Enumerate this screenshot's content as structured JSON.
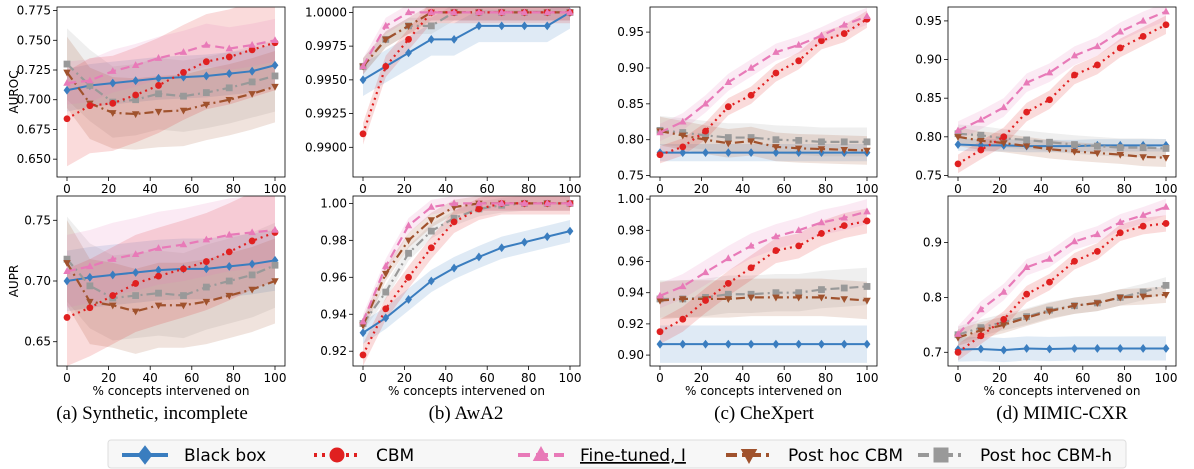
{
  "x_ticks": [
    0,
    20,
    40,
    60,
    80,
    100
  ],
  "xlabel": "% concepts intervened on",
  "legend": {
    "entries": [
      {
        "label": "Black box",
        "color": "#3a7dbf",
        "marker": "diamond",
        "dash": "solid",
        "underline": false
      },
      {
        "label": "CBM",
        "color": "#e02020",
        "marker": "circle",
        "dash": "dotted",
        "underline": false
      },
      {
        "label": "Fine-tuned, I",
        "color": "#e87ab8",
        "marker": "triangle-up",
        "dash": "dashed",
        "underline": true
      },
      {
        "label": "Post hoc CBM",
        "color": "#a0522d",
        "marker": "triangle-down",
        "dash": "dashdot",
        "underline": false
      },
      {
        "label": "Post hoc CBM-h",
        "color": "#999999",
        "marker": "square",
        "dash": "dashdot",
        "underline": false
      }
    ]
  },
  "captions": [
    "(a) Synthetic, incomplete",
    "(b) AwA2",
    "(c) CheXpert",
    "(d) MIMIC-CXR"
  ],
  "chart_data": [
    {
      "type": "line",
      "panel": "a-top",
      "ylabel": "AUROC",
      "ylim": [
        0.635,
        0.778
      ],
      "yticks": [
        0.65,
        0.675,
        0.7,
        0.725,
        0.75,
        0.775
      ],
      "ytick_decimals": 3,
      "x": [
        0,
        11,
        22,
        33,
        44,
        56,
        67,
        78,
        89,
        100
      ],
      "series": [
        {
          "name": "Black box",
          "values": [
            0.708,
            0.712,
            0.714,
            0.716,
            0.718,
            0.719,
            0.72,
            0.722,
            0.724,
            0.729
          ],
          "band": 0.018
        },
        {
          "name": "CBM",
          "values": [
            0.684,
            0.695,
            0.697,
            0.704,
            0.712,
            0.723,
            0.732,
            0.736,
            0.742,
            0.748
          ],
          "band": 0.04
        },
        {
          "name": "Fine-tuned, I",
          "values": [
            0.714,
            0.716,
            0.724,
            0.729,
            0.735,
            0.74,
            0.746,
            0.743,
            0.746,
            0.75
          ],
          "band": 0.018
        },
        {
          "name": "Post hoc CBM",
          "values": [
            0.723,
            0.697,
            0.689,
            0.688,
            0.69,
            0.691,
            0.696,
            0.7,
            0.705,
            0.711
          ],
          "band": 0.03
        },
        {
          "name": "Post hoc CBM-h",
          "values": [
            0.73,
            0.712,
            0.698,
            0.7,
            0.705,
            0.703,
            0.706,
            0.71,
            0.715,
            0.72
          ],
          "band": 0.03
        }
      ]
    },
    {
      "type": "line",
      "panel": "b-top",
      "ylabel": "",
      "ylim": [
        0.9878,
        1.0004
      ],
      "yticks": [
        0.99,
        0.9925,
        0.995,
        0.9975,
        1.0
      ],
      "ytick_decimals": 4,
      "x": [
        0,
        11,
        22,
        33,
        44,
        56,
        67,
        78,
        89,
        100
      ],
      "series": [
        {
          "name": "Black box",
          "values": [
            0.995,
            0.996,
            0.997,
            0.998,
            0.998,
            0.999,
            0.999,
            0.999,
            0.999,
            1.0
          ],
          "band": 0.0012
        },
        {
          "name": "CBM",
          "values": [
            0.991,
            0.996,
            0.998,
            1.0,
            1.0,
            1.0,
            1.0,
            1.0,
            1.0,
            1.0
          ],
          "band": 0.0008
        },
        {
          "name": "Fine-tuned, I",
          "values": [
            0.996,
            0.999,
            1.0,
            1.0,
            1.0,
            1.0,
            1.0,
            1.0,
            1.0,
            1.0
          ],
          "band": 0.0006
        },
        {
          "name": "Post hoc CBM",
          "values": [
            0.996,
            0.998,
            0.999,
            1.0,
            1.0,
            1.0,
            1.0,
            1.0,
            1.0,
            1.0
          ],
          "band": 0.0006
        },
        {
          "name": "Post hoc CBM-h",
          "values": [
            0.996,
            0.998,
            0.999,
            0.999,
            1.0,
            1.0,
            1.0,
            1.0,
            1.0,
            1.0
          ],
          "band": 0.0006
        }
      ]
    },
    {
      "type": "line",
      "panel": "c-top",
      "ylabel": "",
      "ylim": [
        0.748,
        0.985
      ],
      "yticks": [
        0.75,
        0.8,
        0.85,
        0.9,
        0.95
      ],
      "ytick_decimals": 2,
      "x": [
        0,
        11,
        22,
        33,
        44,
        56,
        67,
        78,
        89,
        100
      ],
      "series": [
        {
          "name": "Black box",
          "values": [
            0.782,
            0.782,
            0.782,
            0.782,
            0.782,
            0.782,
            0.782,
            0.782,
            0.782,
            0.782
          ],
          "band": 0.012
        },
        {
          "name": "CBM",
          "values": [
            0.779,
            0.79,
            0.812,
            0.846,
            0.862,
            0.893,
            0.91,
            0.938,
            0.948,
            0.968
          ],
          "band": 0.012
        },
        {
          "name": "Fine-tuned, I",
          "values": [
            0.81,
            0.825,
            0.85,
            0.88,
            0.9,
            0.922,
            0.932,
            0.945,
            0.96,
            0.972
          ],
          "band": 0.012
        },
        {
          "name": "Post hoc CBM",
          "values": [
            0.812,
            0.806,
            0.8,
            0.795,
            0.798,
            0.79,
            0.788,
            0.787,
            0.786,
            0.785
          ],
          "band": 0.02
        },
        {
          "name": "Post hoc CBM-h",
          "values": [
            0.813,
            0.81,
            0.806,
            0.803,
            0.803,
            0.8,
            0.799,
            0.797,
            0.797,
            0.797
          ],
          "band": 0.02
        }
      ]
    },
    {
      "type": "line",
      "panel": "d-top",
      "ylabel": "",
      "ylim": [
        0.748,
        0.968
      ],
      "yticks": [
        0.75,
        0.8,
        0.85,
        0.9,
        0.95
      ],
      "ytick_decimals": 2,
      "x": [
        0,
        11,
        22,
        33,
        44,
        56,
        67,
        78,
        89,
        100
      ],
      "series": [
        {
          "name": "Black box",
          "values": [
            0.79,
            0.789,
            0.789,
            0.788,
            0.788,
            0.788,
            0.789,
            0.789,
            0.789,
            0.789
          ],
          "band": 0.008
        },
        {
          "name": "CBM",
          "values": [
            0.765,
            0.783,
            0.8,
            0.832,
            0.848,
            0.88,
            0.893,
            0.915,
            0.93,
            0.945
          ],
          "band": 0.012
        },
        {
          "name": "Fine-tuned, I",
          "values": [
            0.808,
            0.822,
            0.838,
            0.87,
            0.883,
            0.905,
            0.917,
            0.936,
            0.95,
            0.962
          ],
          "band": 0.012
        },
        {
          "name": "Post hoc CBM",
          "values": [
            0.8,
            0.795,
            0.792,
            0.788,
            0.784,
            0.781,
            0.779,
            0.777,
            0.774,
            0.773
          ],
          "band": 0.012
        },
        {
          "name": "Post hoc CBM-h",
          "values": [
            0.804,
            0.802,
            0.798,
            0.796,
            0.793,
            0.79,
            0.788,
            0.786,
            0.786,
            0.785
          ],
          "band": 0.012
        }
      ]
    },
    {
      "type": "line",
      "panel": "a-bottom",
      "ylabel": "AUPR",
      "ylim": [
        0.63,
        0.77
      ],
      "yticks": [
        0.65,
        0.7,
        0.75
      ],
      "ytick_decimals": 2,
      "x": [
        0,
        11,
        22,
        33,
        44,
        56,
        67,
        78,
        89,
        100
      ],
      "series": [
        {
          "name": "Black box",
          "values": [
            0.7,
            0.703,
            0.705,
            0.707,
            0.709,
            0.71,
            0.71,
            0.712,
            0.714,
            0.717
          ],
          "band": 0.025
        },
        {
          "name": "CBM",
          "values": [
            0.67,
            0.678,
            0.688,
            0.698,
            0.704,
            0.71,
            0.716,
            0.724,
            0.733,
            0.74
          ],
          "band": 0.04
        },
        {
          "name": "Fine-tuned, I",
          "values": [
            0.708,
            0.712,
            0.718,
            0.722,
            0.727,
            0.73,
            0.734,
            0.738,
            0.74,
            0.742
          ],
          "band": 0.03
        },
        {
          "name": "Post hoc CBM",
          "values": [
            0.715,
            0.683,
            0.68,
            0.675,
            0.68,
            0.68,
            0.683,
            0.688,
            0.693,
            0.7
          ],
          "band": 0.035
        },
        {
          "name": "Post hoc CBM-h",
          "values": [
            0.718,
            0.696,
            0.686,
            0.688,
            0.69,
            0.688,
            0.695,
            0.7,
            0.705,
            0.713
          ],
          "band": 0.035
        }
      ]
    },
    {
      "type": "line",
      "panel": "b-bottom",
      "ylabel": "",
      "ylim": [
        0.912,
        1.004
      ],
      "yticks": [
        0.92,
        0.94,
        0.96,
        0.98,
        1.0
      ],
      "ytick_decimals": 2,
      "x": [
        0,
        11,
        22,
        33,
        44,
        56,
        67,
        78,
        89,
        100
      ],
      "series": [
        {
          "name": "Black box",
          "values": [
            0.93,
            0.938,
            0.948,
            0.958,
            0.965,
            0.971,
            0.976,
            0.979,
            0.982,
            0.985
          ],
          "band": 0.006
        },
        {
          "name": "CBM",
          "values": [
            0.918,
            0.943,
            0.96,
            0.976,
            0.99,
            0.997,
            1.0,
            1.0,
            1.0,
            1.0
          ],
          "band": 0.006
        },
        {
          "name": "Fine-tuned, I",
          "values": [
            0.936,
            0.966,
            0.988,
            0.998,
            1.0,
            1.0,
            1.0,
            1.0,
            1.0,
            1.0
          ],
          "band": 0.004
        },
        {
          "name": "Post hoc CBM",
          "values": [
            0.934,
            0.962,
            0.98,
            0.991,
            0.998,
            1.0,
            1.0,
            1.0,
            1.0,
            1.0
          ],
          "band": 0.004
        },
        {
          "name": "Post hoc CBM-h",
          "values": [
            0.935,
            0.952,
            0.973,
            0.985,
            0.992,
            0.997,
            0.999,
            1.0,
            1.0,
            1.0
          ],
          "band": 0.004
        }
      ]
    },
    {
      "type": "line",
      "panel": "c-bottom",
      "ylabel": "",
      "ylim": [
        0.893,
        1.002
      ],
      "yticks": [
        0.9,
        0.92,
        0.94,
        0.96,
        0.98,
        1.0
      ],
      "ytick_decimals": 2,
      "x": [
        0,
        11,
        22,
        33,
        44,
        56,
        67,
        78,
        89,
        100
      ],
      "series": [
        {
          "name": "Black box",
          "values": [
            0.907,
            0.907,
            0.907,
            0.907,
            0.907,
            0.907,
            0.907,
            0.907,
            0.907,
            0.907
          ],
          "band": 0.012
        },
        {
          "name": "CBM",
          "values": [
            0.915,
            0.923,
            0.935,
            0.946,
            0.956,
            0.967,
            0.97,
            0.978,
            0.983,
            0.986
          ],
          "band": 0.008
        },
        {
          "name": "Fine-tuned, I",
          "values": [
            0.938,
            0.944,
            0.953,
            0.962,
            0.97,
            0.976,
            0.98,
            0.985,
            0.988,
            0.992
          ],
          "band": 0.008
        },
        {
          "name": "Post hoc CBM",
          "values": [
            0.935,
            0.936,
            0.936,
            0.936,
            0.937,
            0.937,
            0.937,
            0.937,
            0.936,
            0.935
          ],
          "band": 0.012
        },
        {
          "name": "Post hoc CBM-h",
          "values": [
            0.936,
            0.936,
            0.937,
            0.939,
            0.939,
            0.94,
            0.94,
            0.942,
            0.943,
            0.944
          ],
          "band": 0.012
        }
      ]
    },
    {
      "type": "line",
      "panel": "d-bottom",
      "ylabel": "",
      "ylim": [
        0.675,
        0.985
      ],
      "yticks": [
        0.7,
        0.8,
        0.9
      ],
      "ytick_decimals": 1,
      "x": [
        0,
        11,
        22,
        33,
        44,
        56,
        67,
        78,
        89,
        100
      ],
      "series": [
        {
          "name": "Black box",
          "values": [
            0.705,
            0.706,
            0.704,
            0.707,
            0.706,
            0.707,
            0.707,
            0.707,
            0.707,
            0.707
          ],
          "band": 0.022
        },
        {
          "name": "CBM",
          "values": [
            0.7,
            0.73,
            0.76,
            0.806,
            0.828,
            0.866,
            0.884,
            0.918,
            0.93,
            0.935
          ],
          "band": 0.015
        },
        {
          "name": "Fine-tuned, I",
          "values": [
            0.733,
            0.778,
            0.81,
            0.855,
            0.87,
            0.902,
            0.915,
            0.937,
            0.95,
            0.965
          ],
          "band": 0.015
        },
        {
          "name": "Post hoc CBM",
          "values": [
            0.727,
            0.74,
            0.75,
            0.763,
            0.775,
            0.785,
            0.79,
            0.8,
            0.802,
            0.805
          ],
          "band": 0.015
        },
        {
          "name": "Post hoc CBM-h",
          "values": [
            0.732,
            0.745,
            0.755,
            0.765,
            0.777,
            0.785,
            0.79,
            0.8,
            0.81,
            0.822
          ],
          "band": 0.015
        }
      ]
    }
  ]
}
